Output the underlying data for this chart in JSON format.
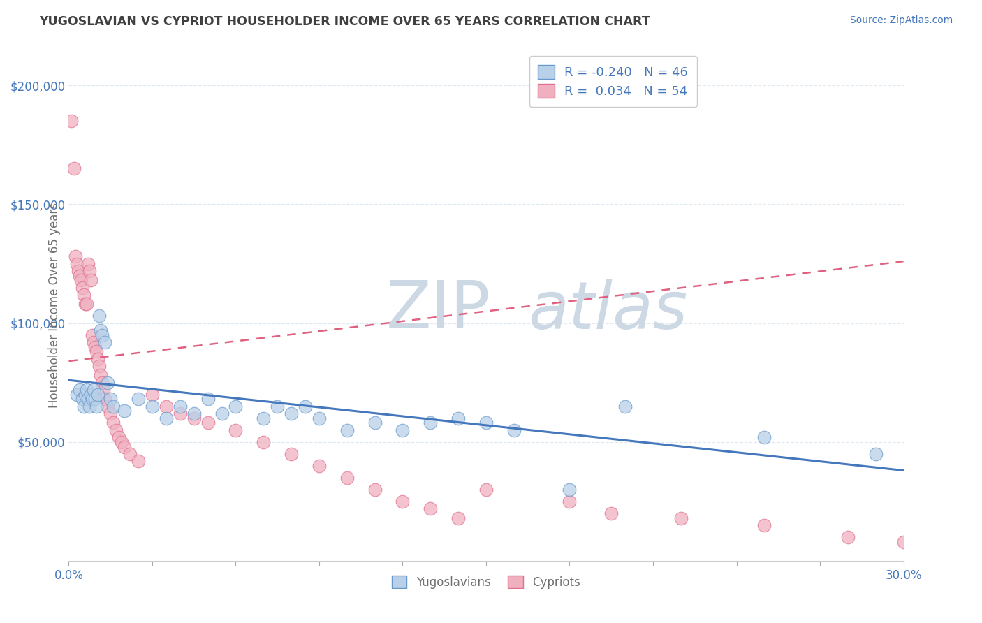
{
  "title": "YUGOSLAVIAN VS CYPRIOT HOUSEHOLDER INCOME OVER 65 YEARS CORRELATION CHART",
  "source": "Source: ZipAtlas.com",
  "ylabel": "Householder Income Over 65 years",
  "x_min": 0.0,
  "x_max": 30.0,
  "y_min": 0,
  "y_max": 215000,
  "y_ticks": [
    50000,
    100000,
    150000,
    200000
  ],
  "y_tick_labels": [
    "$50,000",
    "$100,000",
    "$150,000",
    "$200,000"
  ],
  "blue_fill": "#b8d0e8",
  "blue_edge": "#6699cc",
  "pink_fill": "#f0b0c0",
  "pink_edge": "#e07090",
  "blue_line_color": "#4477bb",
  "pink_line_color": "#e06080",
  "watermark_color": "#ccd8e4",
  "background_color": "#ffffff",
  "grid_color": "#e0e8f0",
  "title_color": "#404040",
  "source_color": "#4477bb",
  "axis_label_color": "#707070",
  "tick_label_color": "#4477bb",
  "legend_text_color": "#4477bb",
  "R_yugo": "-0.240",
  "N_yugo": "46",
  "R_cyp": "0.034",
  "N_cyp": "54",
  "blue_trend_x0": 0.0,
  "blue_trend_y0": 76000,
  "blue_trend_x1": 30.0,
  "blue_trend_y1": 38000,
  "pink_trend_x0": 0.0,
  "pink_trend_y0": 84000,
  "pink_trend_x1": 30.0,
  "pink_trend_y1": 126000,
  "yugo_x": [
    0.3,
    0.4,
    0.5,
    0.55,
    0.6,
    0.65,
    0.7,
    0.75,
    0.8,
    0.85,
    0.9,
    0.95,
    1.0,
    1.05,
    1.1,
    1.15,
    1.2,
    1.3,
    1.4,
    1.5,
    1.6,
    2.0,
    2.5,
    3.0,
    3.5,
    4.0,
    4.5,
    5.0,
    5.5,
    6.0,
    7.0,
    7.5,
    8.0,
    8.5,
    9.0,
    10.0,
    11.0,
    12.0,
    13.0,
    14.0,
    15.0,
    16.0,
    18.0,
    20.0,
    25.0,
    29.0
  ],
  "yugo_y": [
    70000,
    72000,
    68000,
    65000,
    70000,
    72000,
    68000,
    65000,
    70000,
    68000,
    72000,
    68000,
    65000,
    70000,
    103000,
    97000,
    95000,
    92000,
    75000,
    68000,
    65000,
    63000,
    68000,
    65000,
    60000,
    65000,
    62000,
    68000,
    62000,
    65000,
    60000,
    65000,
    62000,
    65000,
    60000,
    55000,
    58000,
    55000,
    58000,
    60000,
    58000,
    55000,
    30000,
    65000,
    52000,
    45000
  ],
  "cyp_x": [
    0.1,
    0.2,
    0.25,
    0.3,
    0.35,
    0.4,
    0.45,
    0.5,
    0.55,
    0.6,
    0.65,
    0.7,
    0.75,
    0.8,
    0.85,
    0.9,
    0.95,
    1.0,
    1.05,
    1.1,
    1.15,
    1.2,
    1.25,
    1.3,
    1.4,
    1.5,
    1.6,
    1.7,
    1.8,
    1.9,
    2.0,
    2.2,
    2.5,
    3.0,
    3.5,
    4.0,
    4.5,
    5.0,
    6.0,
    7.0,
    8.0,
    9.0,
    10.0,
    11.0,
    12.0,
    13.0,
    14.0,
    15.0,
    18.0,
    19.5,
    22.0,
    25.0,
    28.0,
    30.0
  ],
  "cyp_y": [
    185000,
    165000,
    128000,
    125000,
    122000,
    120000,
    118000,
    115000,
    112000,
    108000,
    108000,
    125000,
    122000,
    118000,
    95000,
    92000,
    90000,
    88000,
    85000,
    82000,
    78000,
    75000,
    72000,
    68000,
    65000,
    62000,
    58000,
    55000,
    52000,
    50000,
    48000,
    45000,
    42000,
    70000,
    65000,
    62000,
    60000,
    58000,
    55000,
    50000,
    45000,
    40000,
    35000,
    30000,
    25000,
    22000,
    18000,
    30000,
    25000,
    20000,
    18000,
    15000,
    10000,
    8000
  ]
}
